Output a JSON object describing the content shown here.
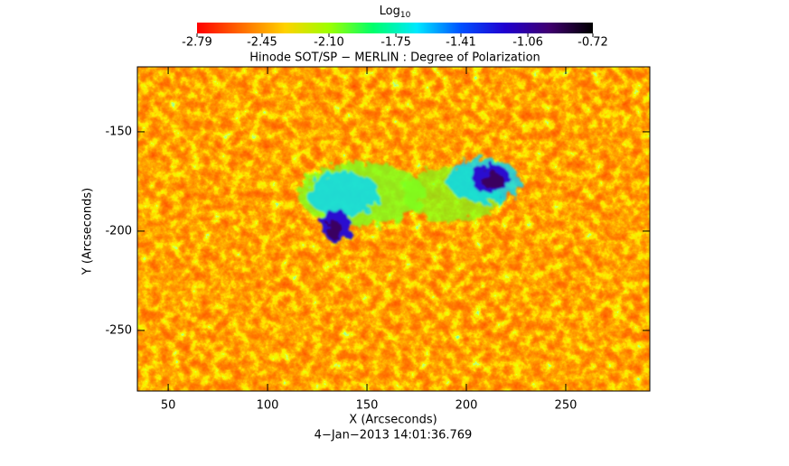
{
  "chart_data": {
    "type": "heatmap",
    "title": "Hinode SOT/SP − MERLIN : Degree of Polarization",
    "x_label": "X (Arcseconds)",
    "y_label": "Y (Arcseconds)",
    "footer": "4−Jan−2013 14:01:36.769",
    "xlim": [
      34.5,
      292.3
    ],
    "xticks": [
      50,
      100,
      150,
      200,
      250
    ],
    "ylim": [
      -280.5,
      -117.3
    ],
    "yticks": [
      -150,
      -200,
      -250
    ],
    "colorbar": {
      "title": "Log",
      "title_sub": "10",
      "clim": [
        -2.79,
        -0.72
      ],
      "ticks": [
        -2.79,
        -2.45,
        {
          "value": -2.1,
          "label": "-2.10"
        },
        -1.75,
        -1.41,
        -1.06,
        -0.72
      ],
      "colors": [
        "#ff0000",
        "#ff6a00",
        "#ffd200",
        "#9eff00",
        "#00ff6a",
        "#00e8ff",
        "#0050ff",
        "#2000d0",
        "#400070",
        "#000000"
      ]
    }
  }
}
